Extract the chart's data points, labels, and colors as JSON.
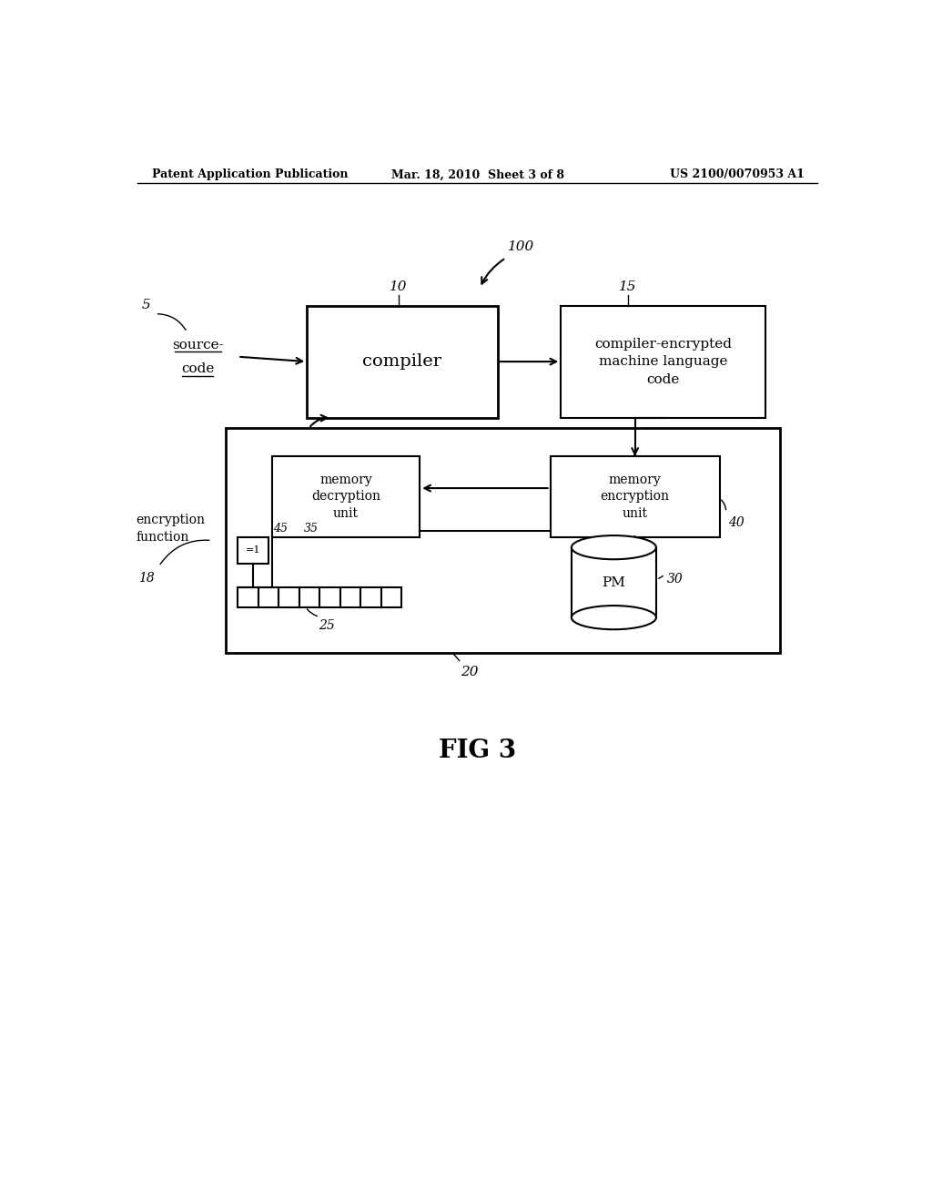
{
  "header_left": "Patent Application Publication",
  "header_mid": "Mar. 18, 2010  Sheet 3 of 8",
  "header_right": "US 2100/0070953 A1",
  "fig_label": "FIG 3",
  "bg_color": "#ffffff",
  "line_color": "#000000",
  "labels": {
    "compiler": "compiler",
    "encrypted_code": "compiler-encrypted\nmachine language\ncode",
    "mem_decryption": "memory\ndecryption\nunit",
    "mem_encryption": "memory\nencryption\nunit",
    "pm": "PM",
    "encryption_function": "encryption\nfunction",
    "xor": "=1"
  },
  "ref_nums": {
    "n5": "5",
    "n10": "10",
    "n15": "15",
    "n18": "18",
    "n20": "20",
    "n25": "25",
    "n30": "30",
    "n35": "35",
    "n40": "40",
    "n45": "45",
    "n100": "100"
  }
}
